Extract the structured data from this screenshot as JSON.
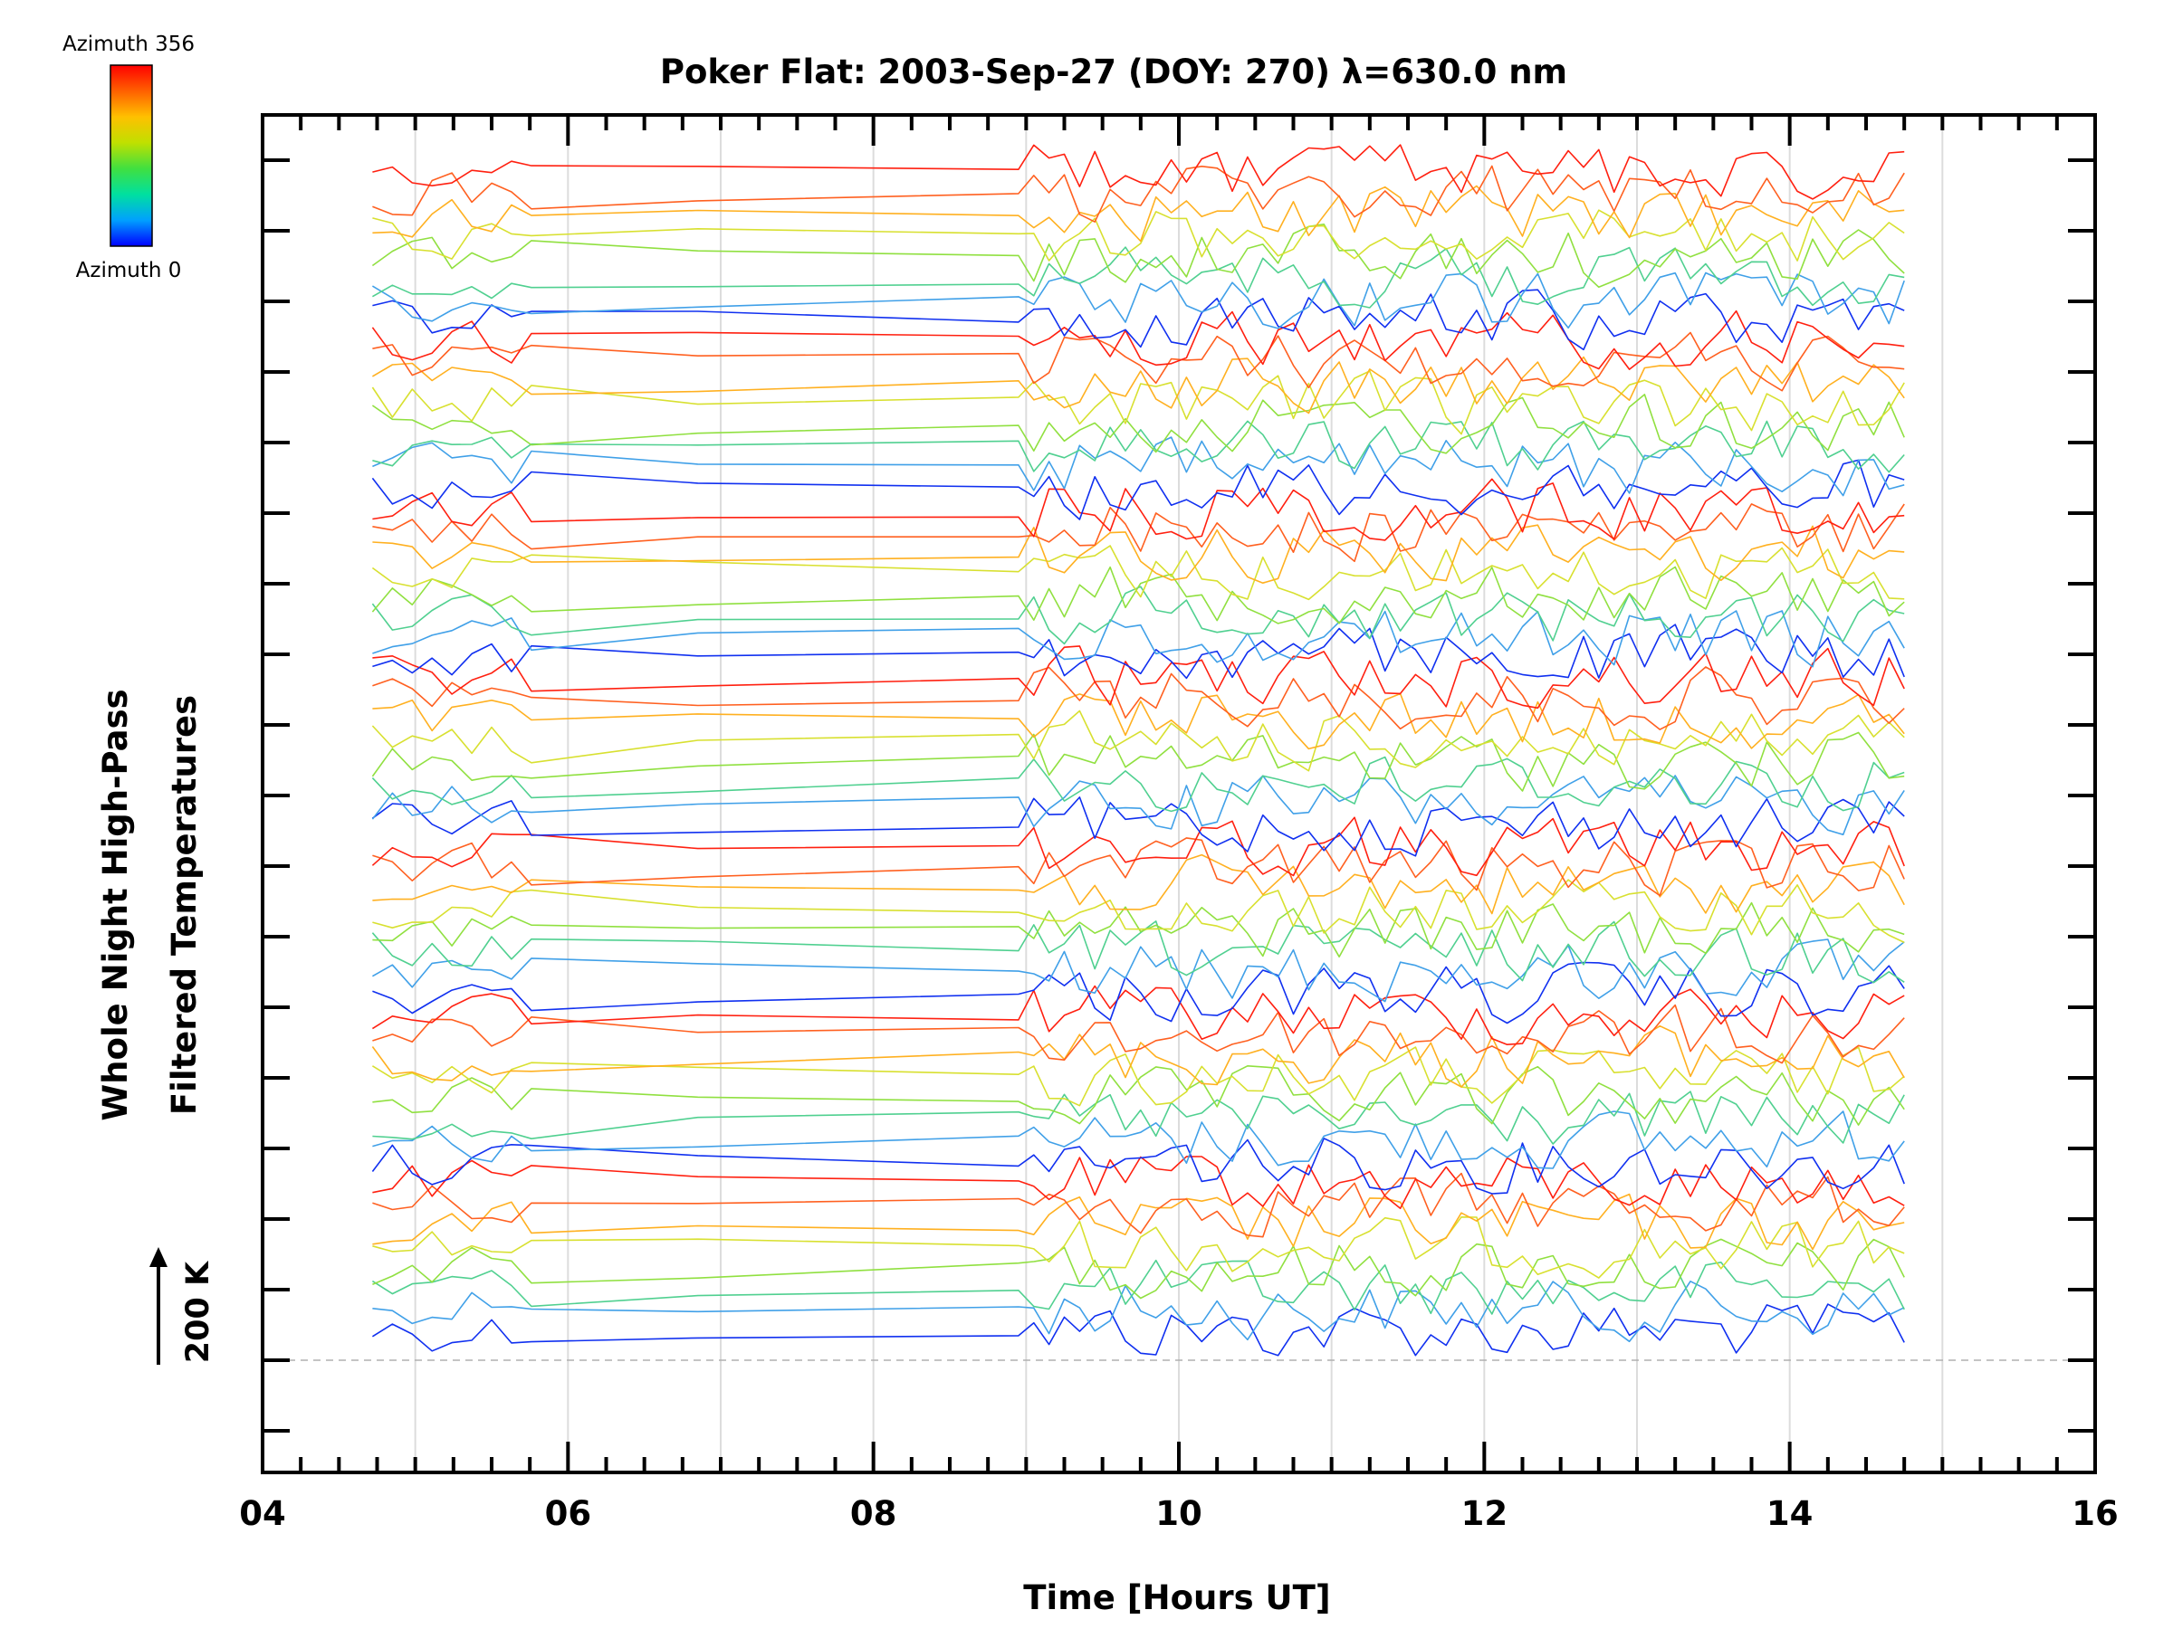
{
  "chart_data": {
    "type": "line",
    "title": "Poker Flat: 2003-Sep-27 (DOY: 270) λ=630.0 nm",
    "xlabel": "Time [Hours UT]",
    "ylabel_lines": [
      "Whole Night High-Pass",
      "Filtered Temperatures"
    ],
    "scale_label": "200 K",
    "xlim": [
      4,
      16
    ],
    "x_ticks": [
      4,
      6,
      8,
      10,
      12,
      14,
      16
    ],
    "x_tick_labels": [
      "04",
      "06",
      "08",
      "10",
      "12",
      "14",
      "16"
    ],
    "x_minor_step": 0.25,
    "grid_x": [
      5,
      6,
      7,
      8,
      9,
      10,
      11,
      12,
      13,
      14,
      15
    ],
    "y_major_tick_count": 17,
    "trace_count": 56,
    "trace_spacing_K": 100,
    "colorbar": {
      "top_label": "Azimuth 356",
      "bottom_label": "Azimuth 0",
      "colors": [
        "#0000ff",
        "#00a0ff",
        "#00e0a0",
        "#40e040",
        "#c0e000",
        "#ffc000",
        "#ff6000",
        "#ff0000"
      ]
    },
    "series_azimuth_colors": [
      "#1030f0",
      "#40a0e8",
      "#50d090",
      "#90e040",
      "#d8e030",
      "#ffb020",
      "#ff6020",
      "#ff2010"
    ],
    "time_samples_hr": [
      4.72,
      4.85,
      4.98,
      5.11,
      5.24,
      5.37,
      5.5,
      5.63,
      5.76,
      6.85,
      8.95,
      9.05,
      9.15,
      9.25,
      9.35,
      9.45,
      9.55,
      9.65,
      9.75,
      9.85,
      9.95,
      10.05,
      10.15,
      10.25,
      10.35,
      10.45,
      10.55,
      10.65,
      10.75,
      10.85,
      10.95,
      11.05,
      11.15,
      11.25,
      11.35,
      11.45,
      11.55,
      11.65,
      11.75,
      11.85,
      11.95,
      12.05,
      12.15,
      12.25,
      12.35,
      12.45,
      12.55,
      12.65,
      12.75,
      12.85,
      12.95,
      13.05,
      13.15,
      13.25,
      13.35,
      13.45,
      13.55,
      13.65,
      13.75,
      13.85,
      13.95,
      14.05,
      14.15,
      14.25,
      14.35,
      14.45,
      14.55,
      14.65,
      14.75
    ]
  }
}
